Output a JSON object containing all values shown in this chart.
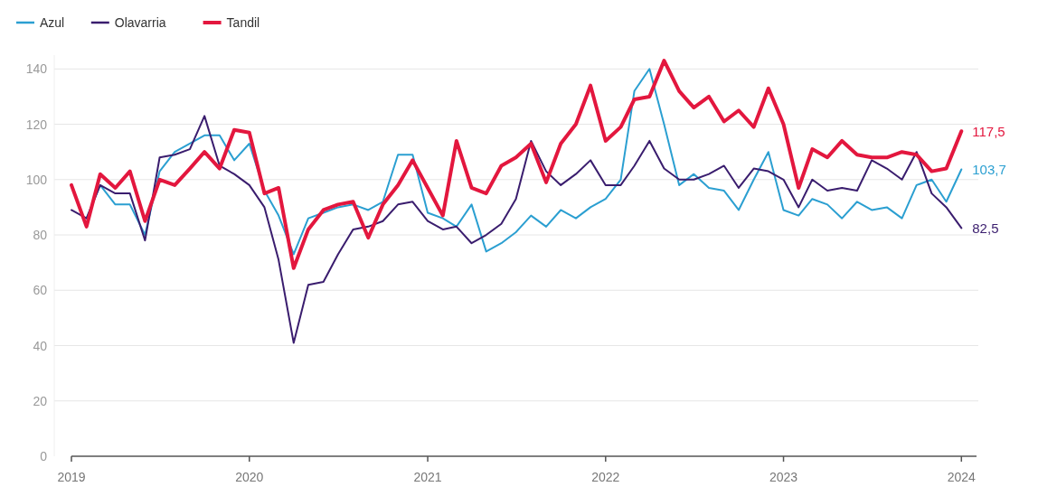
{
  "chart_data": {
    "type": "line",
    "legend": "top left",
    "grid": "y",
    "line_style": "solid",
    "marker": "none",
    "x": [
      "2019-01",
      "2019-02",
      "2019-03",
      "2019-04",
      "2019-05",
      "2019-06",
      "2019-07",
      "2019-08",
      "2019-09",
      "2019-10",
      "2019-11",
      "2019-12",
      "2020-01",
      "2020-02",
      "2020-03",
      "2020-04",
      "2020-05",
      "2020-06",
      "2020-07",
      "2020-08",
      "2020-09",
      "2020-10",
      "2020-11",
      "2020-12",
      "2021-01",
      "2021-02",
      "2021-03",
      "2021-04",
      "2021-05",
      "2021-06",
      "2021-07",
      "2021-08",
      "2021-09",
      "2021-10",
      "2021-11",
      "2021-12",
      "2022-01",
      "2022-02",
      "2022-03",
      "2022-04",
      "2022-05",
      "2022-06",
      "2022-07",
      "2022-08",
      "2022-09",
      "2022-10",
      "2022-11",
      "2022-12",
      "2023-01",
      "2023-02",
      "2023-03",
      "2023-04",
      "2023-05",
      "2023-06",
      "2023-07",
      "2023-08",
      "2023-09",
      "2023-10",
      "2023-11",
      "2023-12",
      "2024-01"
    ],
    "series": [
      {
        "name": "Azul",
        "color": "#2b9fd1",
        "values": [
          null,
          86,
          98,
          91,
          91,
          80,
          103,
          110,
          113,
          116,
          116,
          107,
          113,
          96,
          87,
          73,
          86,
          88,
          90,
          91,
          89,
          92,
          109,
          109,
          88,
          86,
          83,
          91,
          74,
          77,
          81,
          87,
          83,
          89,
          86,
          90,
          93,
          100,
          132,
          140,
          120,
          98,
          102,
          97,
          96,
          89,
          100,
          110,
          89,
          87,
          93,
          91,
          86,
          92,
          89,
          90,
          86,
          98,
          100,
          92,
          103.7
        ]
      },
      {
        "name": "Olavarria",
        "color": "#3a1d6e",
        "values": [
          89,
          86,
          98,
          95,
          95,
          78,
          108,
          109,
          111,
          123,
          105,
          102,
          98,
          90,
          71,
          41,
          62,
          63,
          73,
          82,
          83,
          85,
          91,
          92,
          85,
          82,
          83,
          77,
          80,
          84,
          93,
          114,
          103,
          98,
          102,
          107,
          98,
          98,
          105,
          114,
          104,
          100,
          100,
          102,
          105,
          97,
          104,
          103,
          100,
          90,
          100,
          96,
          97,
          96,
          107,
          104,
          100,
          110,
          95,
          90,
          82.5
        ]
      },
      {
        "name": "Tandil",
        "color": "#e3173e",
        "values": [
          98,
          83,
          102,
          97,
          103,
          85,
          100,
          98,
          104,
          110,
          104,
          118,
          117,
          95,
          97,
          68,
          82,
          89,
          91,
          92,
          79,
          91,
          98,
          107,
          97,
          87,
          114,
          97,
          95,
          105,
          108,
          113,
          99,
          113,
          120,
          134,
          114,
          119,
          129,
          130,
          143,
          132,
          126,
          130,
          121,
          125,
          119,
          133,
          120,
          97,
          111,
          108,
          114,
          109,
          108,
          108,
          110,
          109,
          103,
          104,
          117.5
        ]
      }
    ],
    "xlim": [
      "2019-01",
      "2024-02"
    ],
    "xticks": [
      "2019",
      "2020",
      "2021",
      "2022",
      "2023",
      "2024"
    ],
    "ylim": [
      0,
      145
    ],
    "yticks": [
      0,
      20,
      40,
      60,
      80,
      100,
      120,
      140
    ],
    "annotations": [
      {
        "text": "103,7",
        "x": "2024-01",
        "y": 103.7
      },
      {
        "text": "82,5",
        "x": "2024-01",
        "y": 82.5
      },
      {
        "text": "117,5",
        "x": "2024-01",
        "y": 117.5
      }
    ]
  }
}
